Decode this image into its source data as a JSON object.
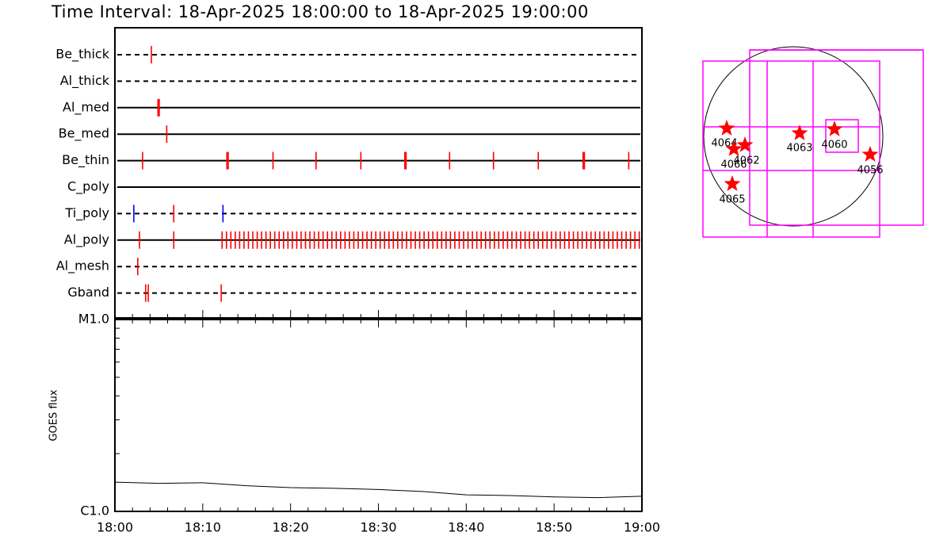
{
  "title": "Time Interval: 18-Apr-2025 18:00:00 to 18-Apr-2025 19:00:00",
  "chart_data": [
    {
      "type": "timeline",
      "xlim": [
        0,
        60
      ],
      "rows": [
        {
          "name": "Be_thick",
          "line": "dashed",
          "color": "#ff0000",
          "times": [
            4.15
          ]
        },
        {
          "name": "Al_thick",
          "line": "dashed",
          "color": "#ff0000",
          "times": []
        },
        {
          "name": "Al_med",
          "line": "solid",
          "color": "#ff0000",
          "times": [
            4.9,
            5.05
          ]
        },
        {
          "name": "Be_med",
          "line": "solid",
          "color": "#ff0000",
          "times": [
            5.9
          ]
        },
        {
          "name": "Be_thin",
          "line": "solid",
          "color": "#ff0000",
          "times": [
            3.15,
            12.75,
            12.9,
            18.0,
            22.9,
            28.0,
            33.0,
            33.15,
            38.1,
            43.1,
            48.2,
            53.3,
            53.45,
            58.5
          ]
        },
        {
          "name": "C_poly",
          "line": "solid",
          "color": "#ff0000",
          "times": []
        },
        {
          "name": "Ti_poly",
          "line": "dashed",
          "color": "#ff0000",
          "times": [
            2.15,
            6.7,
            12.3
          ],
          "colors": [
            "#0000ff",
            "#ff0000",
            "#0000ff"
          ]
        },
        {
          "name": "Al_poly",
          "line": "solid",
          "color": "#ff0000",
          "times": [
            2.8,
            6.7,
            12.2,
            12.7,
            13.2,
            13.7,
            14.2,
            14.7,
            15.2,
            15.7,
            16.2,
            16.7,
            17.2,
            17.7,
            18.2,
            18.7,
            19.2,
            19.7,
            20.2,
            20.7,
            21.2,
            21.7,
            22.2,
            22.7,
            23.2,
            23.7,
            24.2,
            24.7,
            25.2,
            25.7,
            26.2,
            26.7,
            27.2,
            27.7,
            28.2,
            28.7,
            29.2,
            29.7,
            30.2,
            30.7,
            31.2,
            31.7,
            32.2,
            32.7,
            33.2,
            33.7,
            34.2,
            34.7,
            35.2,
            35.7,
            36.2,
            36.7,
            37.2,
            37.7,
            38.2,
            38.7,
            39.2,
            39.7,
            40.2,
            40.7,
            41.2,
            41.7,
            42.2,
            42.7,
            43.2,
            43.7,
            44.2,
            44.7,
            45.2,
            45.7,
            46.2,
            46.7,
            47.2,
            47.7,
            48.2,
            48.7,
            49.2,
            49.7,
            50.2,
            50.7,
            51.2,
            51.7,
            52.2,
            52.7,
            53.2,
            53.7,
            54.2,
            54.7,
            55.2,
            55.7,
            56.2,
            56.7,
            57.2,
            57.7,
            58.2,
            58.7,
            59.2,
            59.7
          ]
        },
        {
          "name": "Al_mesh",
          "line": "dashed",
          "color": "#ff0000",
          "times": [
            2.6
          ]
        },
        {
          "name": "Gband",
          "line": "dashed",
          "color": "#ff0000",
          "times": [
            3.5,
            3.8,
            12.1
          ]
        }
      ]
    },
    {
      "type": "line",
      "ylabel": "GOES flux",
      "ylog": true,
      "ylim": [
        1e-06,
        1e-05
      ],
      "yticks": [
        {
          "value": 1e-06,
          "label": "C1.0"
        },
        {
          "value": 1e-05,
          "label": "M1.0"
        }
      ],
      "yminorticks": [
        2e-06,
        3e-06,
        4e-06,
        5e-06,
        6e-06,
        7e-06,
        8e-06,
        9e-06
      ],
      "xlim": [
        0,
        60
      ],
      "xticks": [
        {
          "value": 0,
          "label": "18:00"
        },
        {
          "value": 10,
          "label": "18:10"
        },
        {
          "value": 20,
          "label": "18:20"
        },
        {
          "value": 30,
          "label": "18:30"
        },
        {
          "value": 40,
          "label": "18:40"
        },
        {
          "value": 50,
          "label": "18:50"
        },
        {
          "value": 60,
          "label": "19:00"
        }
      ],
      "xminorticks": [
        2,
        4,
        6,
        8,
        12,
        14,
        16,
        18,
        22,
        24,
        26,
        28,
        32,
        34,
        36,
        38,
        42,
        44,
        46,
        48,
        52,
        54,
        56,
        58
      ],
      "x": [
        0,
        5,
        10,
        15,
        20,
        25,
        30,
        35,
        40,
        45,
        50,
        55,
        60
      ],
      "values": [
        1.42e-06,
        1.4e-06,
        1.41e-06,
        1.36e-06,
        1.33e-06,
        1.32e-06,
        1.3e-06,
        1.27e-06,
        1.22e-06,
        1.21e-06,
        1.19e-06,
        1.18e-06,
        1.2e-06
      ],
      "color": "#000000"
    }
  ],
  "map": {
    "regions": [
      "4064",
      "4066",
      "4062",
      "4063",
      "4060",
      "4056",
      "4065"
    ],
    "star_color": "#ff0000",
    "box_color": "#ff00ff"
  }
}
